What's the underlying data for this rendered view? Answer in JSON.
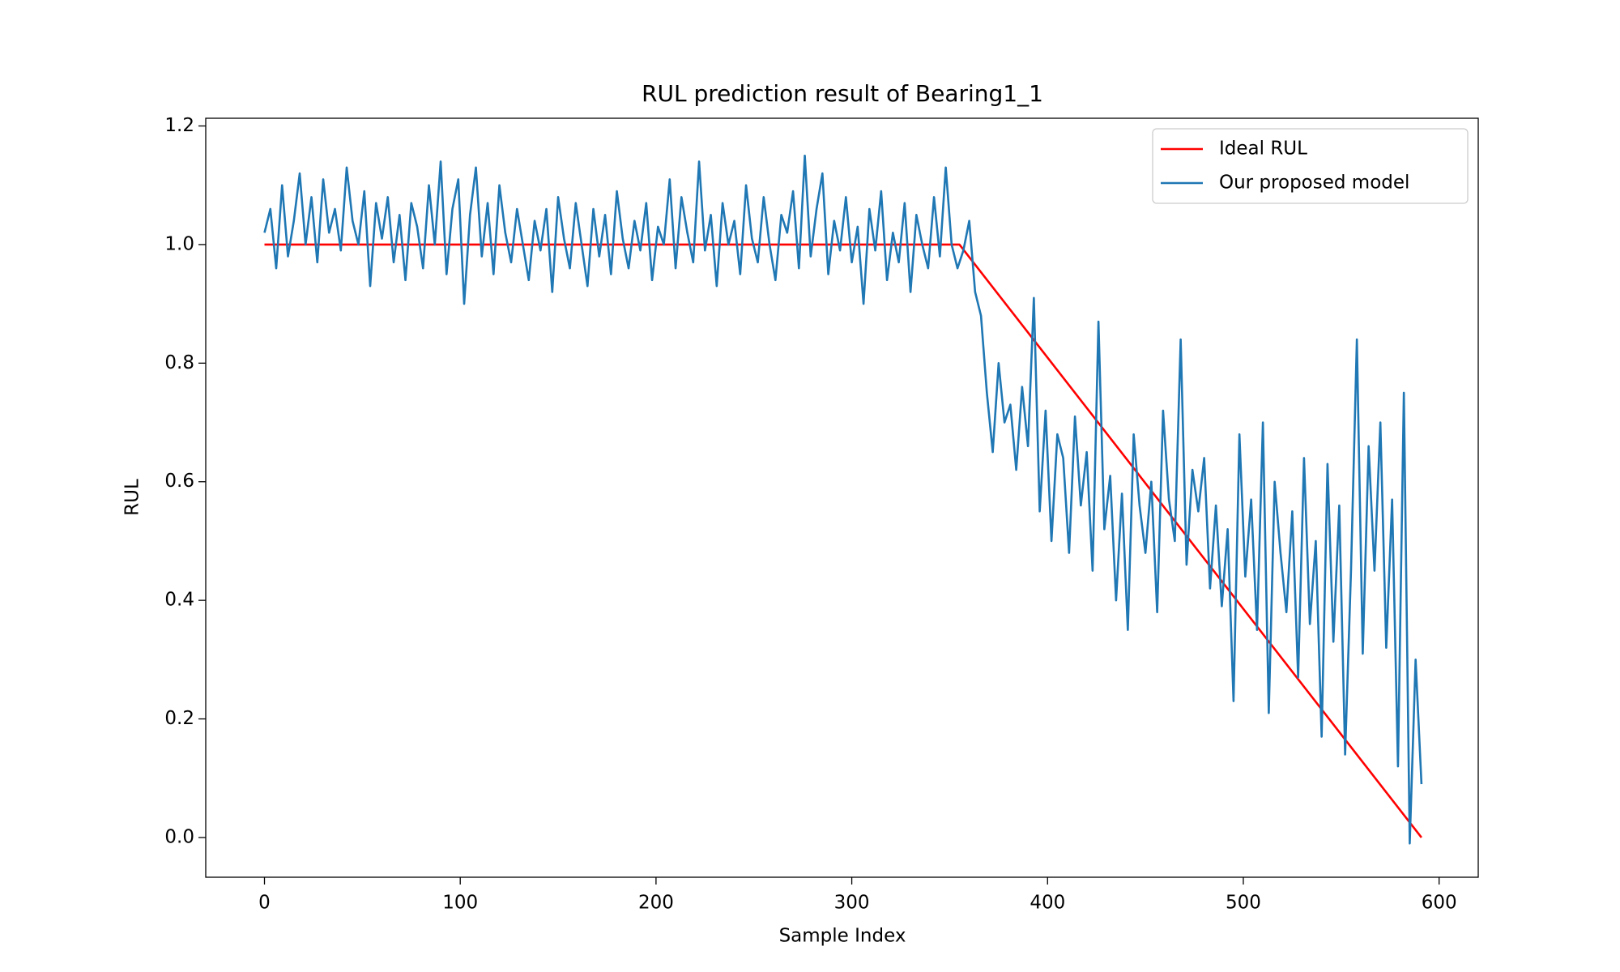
{
  "chart_data": {
    "type": "line",
    "title": "RUL prediction result of Bearing1_1",
    "x_label": "Sample Index",
    "y_label": "RUL",
    "xlim": [
      -30,
      620
    ],
    "ylim": [
      -0.067,
      1.213
    ],
    "xticks": [
      0,
      100,
      200,
      300,
      400,
      500,
      600
    ],
    "yticks": [
      {
        "value": 0,
        "label": "0.0"
      },
      0.2,
      0.4,
      0.6,
      0.8,
      {
        "value": 1,
        "label": "1.0"
      },
      1.2
    ],
    "grid": false,
    "legend": "upper right",
    "series": [
      {
        "name": "Ideal RUL",
        "color": "#ff0000",
        "x": [
          0,
          355,
          591
        ],
        "values": [
          1,
          1,
          0
        ]
      },
      {
        "name": "Our proposed model",
        "color": "#1f77b4",
        "x": [
          0,
          3,
          6,
          9,
          12,
          15,
          18,
          21,
          24,
          27,
          30,
          33,
          36,
          39,
          42,
          45,
          48,
          51,
          54,
          57,
          60,
          63,
          66,
          69,
          72,
          75,
          78,
          81,
          84,
          87,
          90,
          93,
          96,
          99,
          102,
          105,
          108,
          111,
          114,
          117,
          120,
          123,
          126,
          129,
          132,
          135,
          138,
          141,
          144,
          147,
          150,
          153,
          156,
          159,
          162,
          165,
          168,
          171,
          174,
          177,
          180,
          183,
          186,
          189,
          192,
          195,
          198,
          201,
          204,
          207,
          210,
          213,
          216,
          219,
          222,
          225,
          228,
          231,
          234,
          237,
          240,
          243,
          246,
          249,
          252,
          255,
          258,
          261,
          264,
          267,
          270,
          273,
          276,
          279,
          282,
          285,
          288,
          291,
          294,
          297,
          300,
          303,
          306,
          309,
          312,
          315,
          318,
          321,
          324,
          327,
          330,
          333,
          336,
          339,
          342,
          345,
          348,
          351,
          354,
          357,
          360,
          363,
          366,
          369,
          372,
          375,
          378,
          381,
          384,
          387,
          390,
          393,
          396,
          399,
          402,
          405,
          408,
          411,
          414,
          417,
          420,
          423,
          426,
          429,
          432,
          435,
          438,
          441,
          444,
          447,
          450,
          453,
          456,
          459,
          462,
          465,
          468,
          471,
          474,
          477,
          480,
          483,
          486,
          489,
          492,
          495,
          498,
          501,
          504,
          507,
          510,
          513,
          516,
          519,
          522,
          525,
          528,
          531,
          534,
          537,
          540,
          543,
          546,
          549,
          552,
          555,
          558,
          561,
          564,
          567,
          570,
          573,
          576,
          579,
          582,
          585,
          588,
          591
        ],
        "values": [
          1.02,
          1.06,
          0.96,
          1.1,
          0.98,
          1.04,
          1.12,
          1.0,
          1.08,
          0.97,
          1.11,
          1.02,
          1.06,
          0.99,
          1.13,
          1.04,
          1.0,
          1.09,
          0.93,
          1.07,
          1.01,
          1.08,
          0.97,
          1.05,
          0.94,
          1.07,
          1.03,
          0.96,
          1.1,
          1.0,
          1.14,
          0.95,
          1.06,
          1.11,
          0.9,
          1.05,
          1.13,
          0.98,
          1.07,
          0.95,
          1.1,
          1.02,
          0.97,
          1.06,
          1.0,
          0.94,
          1.04,
          0.99,
          1.06,
          0.92,
          1.08,
          1.01,
          0.96,
          1.07,
          1.0,
          0.93,
          1.06,
          0.98,
          1.05,
          0.95,
          1.09,
          1.01,
          0.96,
          1.04,
          0.99,
          1.07,
          0.94,
          1.03,
          1.0,
          1.11,
          0.96,
          1.08,
          1.02,
          0.97,
          1.14,
          0.99,
          1.05,
          0.93,
          1.07,
          1.0,
          1.04,
          0.95,
          1.1,
          1.01,
          0.97,
          1.08,
          1.0,
          0.94,
          1.05,
          1.02,
          1.09,
          0.96,
          1.15,
          0.98,
          1.06,
          1.12,
          0.95,
          1.04,
          0.99,
          1.08,
          0.97,
          1.03,
          0.9,
          1.06,
          0.99,
          1.09,
          0.94,
          1.02,
          0.97,
          1.07,
          0.92,
          1.05,
          1.0,
          0.96,
          1.08,
          0.98,
          1.13,
          1.0,
          0.96,
          0.99,
          1.04,
          0.92,
          0.88,
          0.75,
          0.65,
          0.8,
          0.7,
          0.73,
          0.62,
          0.76,
          0.66,
          0.91,
          0.55,
          0.72,
          0.5,
          0.68,
          0.64,
          0.48,
          0.71,
          0.56,
          0.65,
          0.45,
          0.87,
          0.52,
          0.61,
          0.4,
          0.58,
          0.35,
          0.68,
          0.56,
          0.48,
          0.6,
          0.38,
          0.72,
          0.57,
          0.5,
          0.84,
          0.46,
          0.62,
          0.55,
          0.64,
          0.42,
          0.56,
          0.39,
          0.52,
          0.23,
          0.68,
          0.44,
          0.57,
          0.35,
          0.7,
          0.21,
          0.6,
          0.48,
          0.38,
          0.55,
          0.27,
          0.64,
          0.36,
          0.5,
          0.17,
          0.63,
          0.33,
          0.56,
          0.14,
          0.45,
          0.84,
          0.31,
          0.66,
          0.45,
          0.7,
          0.32,
          0.57,
          0.12,
          0.75,
          -0.01,
          0.3,
          0.09
        ]
      }
    ]
  }
}
